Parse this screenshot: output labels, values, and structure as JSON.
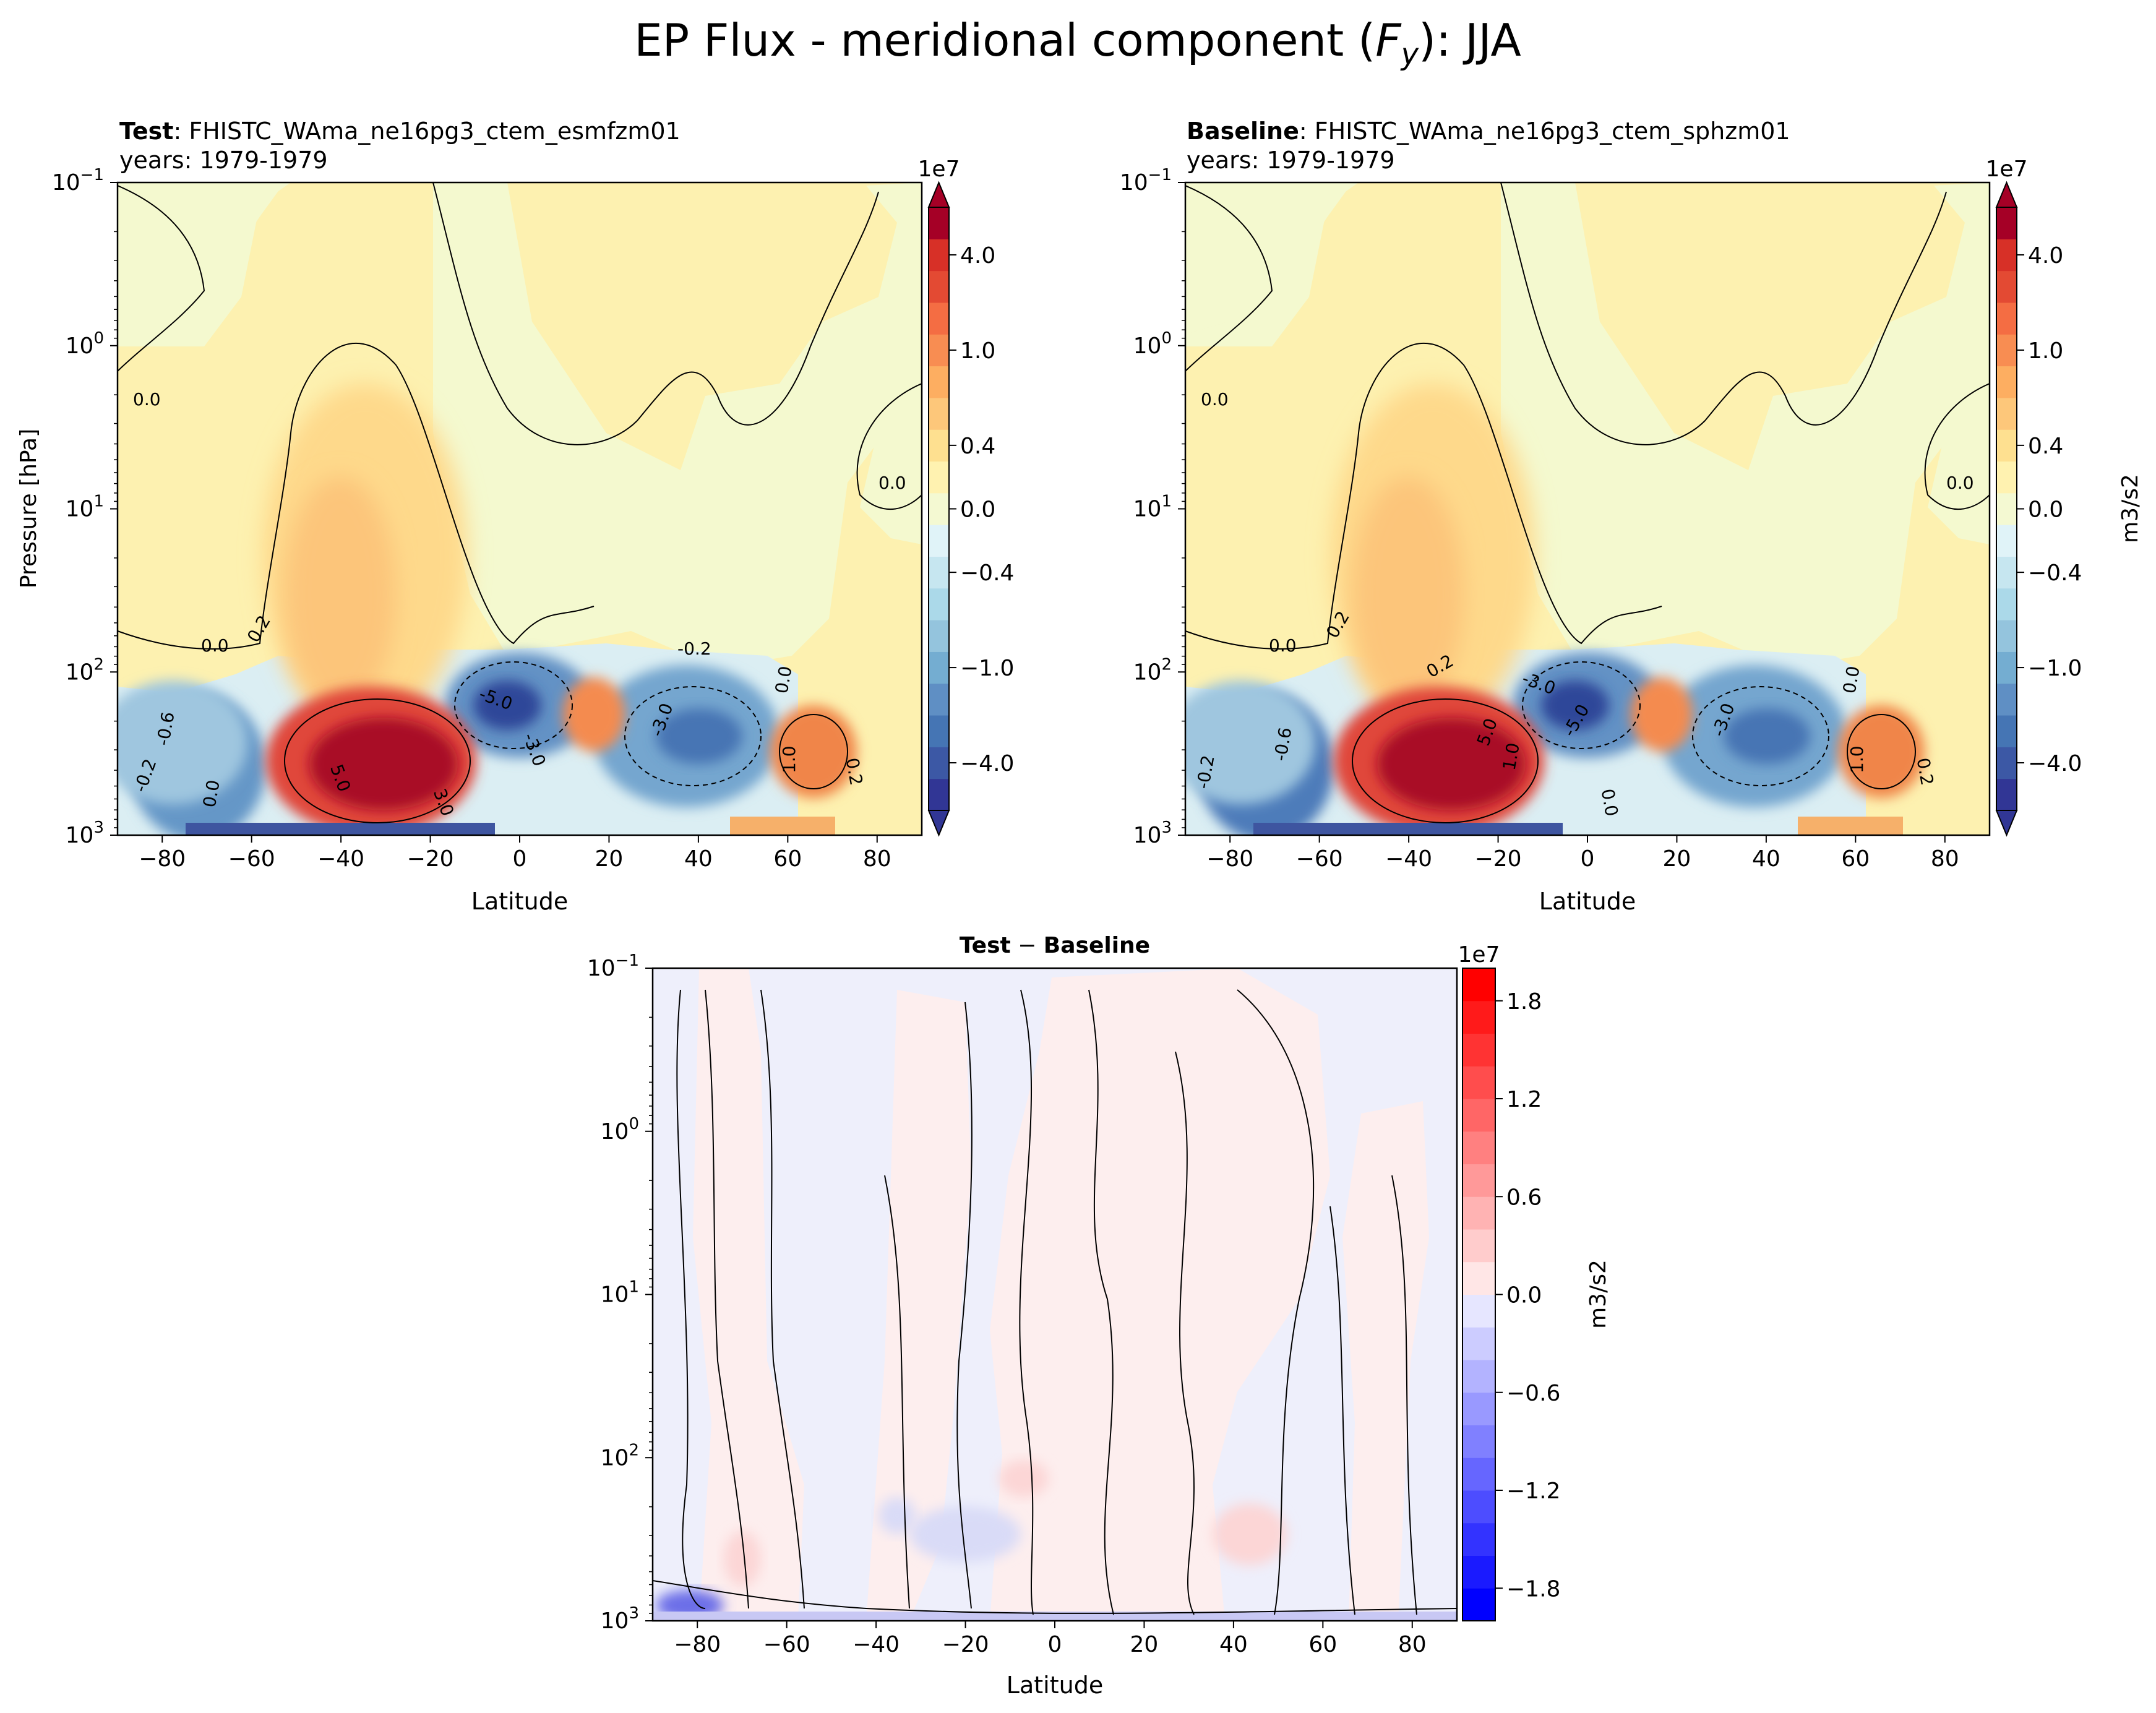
{
  "figure": {
    "suptitle_prefix": "EP Flux - meridional component (",
    "suptitle_symbol": "F",
    "suptitle_subscript": "y",
    "suptitle_suffix": "): JJA"
  },
  "chart_data": [
    {
      "id": "test",
      "type": "contour",
      "title_bold": "Test",
      "title_rest": ": FHISTC_WAma_ne16pg3_ctem_esmfzm01",
      "subtitle": "years: 1979-1979",
      "xlabel": "Latitude",
      "ylabel": "Pressure [hPa]",
      "xlim": [
        -90,
        90
      ],
      "ylim_hpa": [
        1000,
        0.1
      ],
      "yscale": "log",
      "xticks": [
        "−80",
        "−60",
        "−40",
        "−20",
        "0",
        "20",
        "40",
        "60",
        "80"
      ],
      "yticks": [
        "10",
        "10",
        "10",
        "10",
        "10"
      ],
      "ytick_exponents": [
        "−1",
        "0",
        "1",
        "2",
        "3"
      ],
      "colorbar": {
        "scale": "1e7",
        "unit": "",
        "ticks": [
          "4.0",
          "1.0",
          "0.4",
          "0.0",
          "−0.4",
          "−1.0",
          "−4.0"
        ],
        "levels_1e7": [
          -5.0,
          -4.0,
          -3.0,
          -2.0,
          -1.0,
          -0.8,
          -0.6,
          -0.4,
          -0.2,
          0.0,
          0.2,
          0.4,
          0.6,
          0.8,
          1.0,
          2.0,
          3.0,
          4.0,
          5.0
        ]
      },
      "features": [
        {
          "name": "SH subtropical jet max",
          "lat": -33,
          "p_hpa": 300,
          "value_1e7": 5.0,
          "sign": "positive"
        },
        {
          "name": "SH stratospheric plume",
          "lat": -45,
          "p_hpa": 10,
          "value_1e7": 0.4,
          "sign": "positive"
        },
        {
          "name": "Equatorial minimum",
          "lat": -3,
          "p_hpa": 160,
          "value_1e7": -5.0,
          "sign": "negative"
        },
        {
          "name": "NH midlatitude minimum",
          "lat": 40,
          "p_hpa": 220,
          "value_1e7": -3.0,
          "sign": "negative"
        },
        {
          "name": "NH high-latitude max",
          "lat": 65,
          "p_hpa": 300,
          "value_1e7": 1.0,
          "sign": "positive"
        },
        {
          "name": "NH subtropical max",
          "lat": 15,
          "p_hpa": 200,
          "value_1e7": 1.0,
          "sign": "positive"
        },
        {
          "name": "SH polar minimum",
          "lat": -72,
          "p_hpa": 500,
          "value_1e7": -0.6,
          "sign": "negative"
        }
      ],
      "contour_labels": [
        "0.0",
        "0.0",
        "0.0",
        "0.2",
        "-0.2",
        "0.0",
        "5.0",
        "3.0",
        "-5.0",
        "-3.0",
        "-3.0",
        "1.0",
        "-0.6",
        "-0.2",
        "0.0",
        "0.2"
      ]
    },
    {
      "id": "baseline",
      "type": "contour",
      "title_bold": "Baseline",
      "title_rest": ": FHISTC_WAma_ne16pg3_ctem_sphzm01",
      "subtitle": "years: 1979-1979",
      "xlabel": "Latitude",
      "ylabel": "",
      "xlim": [
        -90,
        90
      ],
      "ylim_hpa": [
        1000,
        0.1
      ],
      "yscale": "log",
      "xticks": [
        "−80",
        "−60",
        "−40",
        "−20",
        "0",
        "20",
        "40",
        "60",
        "80"
      ],
      "yticks": [
        "10",
        "10",
        "10",
        "10",
        "10"
      ],
      "ytick_exponents": [
        "−1",
        "0",
        "1",
        "2",
        "3"
      ],
      "colorbar": {
        "scale": "1e7",
        "unit": "m3/s2",
        "ticks": [
          "4.0",
          "1.0",
          "0.4",
          "0.0",
          "−0.4",
          "−1.0",
          "−4.0"
        ],
        "levels_1e7": [
          -5.0,
          -4.0,
          -3.0,
          -2.0,
          -1.0,
          -0.8,
          -0.6,
          -0.4,
          -0.2,
          0.0,
          0.2,
          0.4,
          0.6,
          0.8,
          1.0,
          2.0,
          3.0,
          4.0,
          5.0
        ]
      },
      "features": [
        {
          "name": "SH subtropical jet max",
          "lat": -33,
          "p_hpa": 300,
          "value_1e7": 5.0,
          "sign": "positive"
        },
        {
          "name": "SH stratospheric plume",
          "lat": -45,
          "p_hpa": 10,
          "value_1e7": 0.4,
          "sign": "positive"
        },
        {
          "name": "Equatorial minimum",
          "lat": -3,
          "p_hpa": 160,
          "value_1e7": -5.0,
          "sign": "negative"
        },
        {
          "name": "NH midlatitude minimum",
          "lat": 40,
          "p_hpa": 220,
          "value_1e7": -3.0,
          "sign": "negative"
        },
        {
          "name": "NH high-latitude max",
          "lat": 65,
          "p_hpa": 300,
          "value_1e7": 1.0,
          "sign": "positive"
        },
        {
          "name": "NH subtropical max",
          "lat": 15,
          "p_hpa": 200,
          "value_1e7": 1.0,
          "sign": "positive"
        },
        {
          "name": "SH polar minimum",
          "lat": -72,
          "p_hpa": 500,
          "value_1e7": -0.6,
          "sign": "negative"
        }
      ],
      "contour_labels": [
        "0.0",
        "0.0",
        "0.0",
        "0.2",
        "0.2",
        "0.0",
        "5.0",
        "1.0",
        "-3.0",
        "-5.0",
        "-3.0",
        "1.0",
        "-0.6",
        "-0.2",
        "0.0",
        "0.2"
      ]
    },
    {
      "id": "diff",
      "type": "contour",
      "title_bold": "Test",
      "title_rest": " − ",
      "title_bold2": "Baseline",
      "subtitle": "",
      "xlabel": "Latitude",
      "ylabel": "",
      "xlim": [
        -90,
        90
      ],
      "ylim_hpa": [
        1000,
        0.1
      ],
      "yscale": "log",
      "xticks": [
        "−80",
        "−60",
        "−40",
        "−20",
        "0",
        "20",
        "40",
        "60",
        "80"
      ],
      "yticks": [
        "10",
        "10",
        "10",
        "10",
        "10"
      ],
      "ytick_exponents": [
        "−1",
        "0",
        "1",
        "2",
        "3"
      ],
      "colorbar": {
        "scale": "1e7",
        "unit": "m3/s2",
        "ticks": [
          "1.8",
          "1.2",
          "0.6",
          "0.0",
          "−0.6",
          "−1.2",
          "−1.8"
        ],
        "levels_1e7": [
          -2.0,
          -1.8,
          -1.6,
          -1.4,
          -1.2,
          -1.0,
          -0.8,
          -0.6,
          -0.4,
          -0.2,
          0.0,
          0.2,
          0.4,
          0.6,
          0.8,
          1.0,
          1.2,
          1.4,
          1.6,
          1.8,
          2.0
        ]
      },
      "features": [
        {
          "name": "Near-surface SH polar negative",
          "lat": -80,
          "p_hpa": 950,
          "value_1e7": -0.8,
          "sign": "negative"
        },
        {
          "name": "Tropical upper-trop negative",
          "lat": -22,
          "p_hpa": 400,
          "value_1e7": -0.2,
          "sign": "negative"
        },
        {
          "name": "NH upper-trop positive",
          "lat": 40,
          "p_hpa": 400,
          "value_1e7": 0.2,
          "sign": "positive"
        },
        {
          "name": "NH subtropical positive",
          "lat": 0,
          "p_hpa": 150,
          "value_1e7": 0.2,
          "sign": "positive"
        }
      ]
    }
  ]
}
